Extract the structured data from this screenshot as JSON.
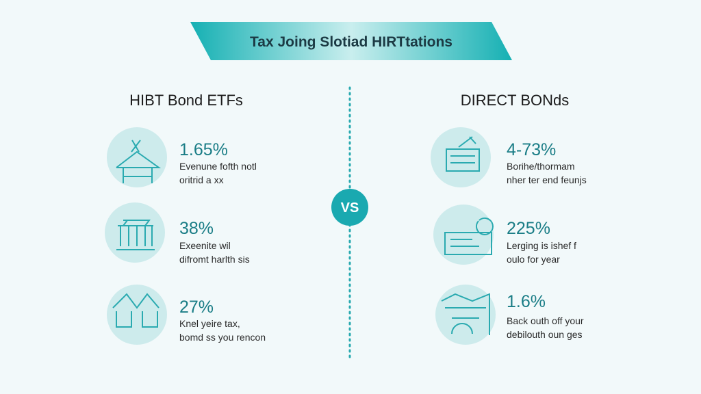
{
  "title": "Tax Joing Slotiad HIRTtations",
  "vs": "VS",
  "left": {
    "heading": "HIBT Bond ETFs",
    "items": [
      {
        "stat": "1.65%",
        "lines": [
          "Evenune fofth notl",
          "oritrid a xx"
        ]
      },
      {
        "stat": "38%",
        "lines": [
          "Exeenite wil",
          "difromt harlth sis"
        ]
      },
      {
        "stat": "27%",
        "lines": [
          "Knel yeire tax,",
          "bomd ss you rencon"
        ]
      }
    ]
  },
  "right": {
    "heading": "DIRECT BONds",
    "items": [
      {
        "stat": "4-73%",
        "lines": [
          "Borihe/thormam",
          "nher ter end feunjs"
        ]
      },
      {
        "stat": "225%",
        "lines": [
          "Lerging is ishef f",
          "oulo for year"
        ]
      },
      {
        "stat": "1.6%",
        "lines": [
          "Back outh off your",
          "debilouth oun ges"
        ]
      }
    ]
  }
}
